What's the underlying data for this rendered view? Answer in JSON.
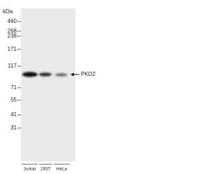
{
  "unit": "kDa",
  "markers": [
    "460",
    "268",
    "238",
    "171",
    "117",
    "71",
    "55",
    "41",
    "31"
  ],
  "lanes": [
    "Jurkat",
    "293T",
    "HeLa"
  ],
  "band_label": "PKD2"
}
